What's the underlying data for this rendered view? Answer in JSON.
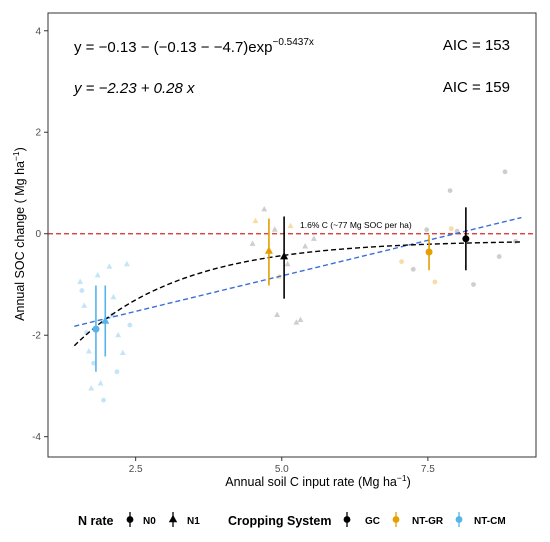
{
  "chart_data": {
    "type": "scatter",
    "xlabel": "Annual soil C input rate (Mg ha",
    "xlabel_sup": "−1",
    "xlabel_end": ")",
    "ylabel": "Annual SOC change ( Mg ha",
    "ylabel_sup": "−1",
    "ylabel_end": ")",
    "xlim": [
      1.0,
      9.35
    ],
    "ylim": [
      -4.4,
      4.35
    ],
    "x_ticks": [
      2.5,
      5.0,
      7.5
    ],
    "x_tick_labels": [
      "2.5",
      "5.0",
      "7.5"
    ],
    "y_ticks": [
      -4,
      -2,
      0,
      2,
      4
    ],
    "y_tick_labels": [
      "-4",
      "-2",
      "0",
      "2",
      "4"
    ],
    "grid": false,
    "annotations": {
      "eq1_main": "y = −0.13 − (−0.13 − −4.7)exp",
      "eq1_sup": "−0.5437x",
      "eq2": "y = −2.23 + 0.28 x",
      "aic1": "AIC = 153",
      "aic2": "AIC = 159",
      "threshold_label": "1.6% C (~77 Mg SOC per ha)"
    },
    "colors": {
      "GC": "#000000",
      "NT-GR": "#E69F00",
      "NT-CM": "#56B4E9",
      "exp_fit": "#000000",
      "linear_fit": "#3A6FD8",
      "zero_line": "#D62728",
      "raw_gray": "#BDBDBD"
    },
    "reference_line": {
      "y": 0
    },
    "exp_fit": {
      "a": -0.13,
      "b": -4.7,
      "k": 0.5437,
      "x_range": [
        1.45,
        9.1
      ]
    },
    "linear_fit": {
      "intercept": -2.23,
      "slope": 0.28,
      "x_range": [
        1.45,
        9.1
      ]
    },
    "summary_points": [
      {
        "group": "NT-CM",
        "n_rate": "N0",
        "x": 1.82,
        "y": -1.88,
        "ymin": -2.72,
        "ymax": -1.02
      },
      {
        "group": "NT-CM",
        "n_rate": "N1",
        "x": 1.98,
        "y": -1.72,
        "ymin": -2.42,
        "ymax": -1.02
      },
      {
        "group": "NT-GR",
        "n_rate": "N1",
        "x": 4.78,
        "y": -0.34,
        "ymin": -1.02,
        "ymax": 0.3
      },
      {
        "group": "GC",
        "n_rate": "N1",
        "x": 5.04,
        "y": -0.45,
        "ymin": -1.28,
        "ymax": 0.34
      },
      {
        "group": "NT-GR",
        "n_rate": "N0",
        "x": 7.52,
        "y": -0.36,
        "ymin": -0.72,
        "ymax": -0.02
      },
      {
        "group": "GC",
        "n_rate": "N0",
        "x": 8.15,
        "y": -0.1,
        "ymin": -0.72,
        "ymax": 0.52
      }
    ],
    "raw_points": [
      {
        "group": "NT-CM",
        "shape": "triangle",
        "x": 1.55,
        "y": -0.95
      },
      {
        "group": "NT-CM",
        "shape": "triangle",
        "x": 1.62,
        "y": -1.42
      },
      {
        "group": "NT-CM",
        "shape": "triangle",
        "x": 1.7,
        "y": -2.32
      },
      {
        "group": "NT-CM",
        "shape": "triangle",
        "x": 1.74,
        "y": -3.05
      },
      {
        "group": "NT-CM",
        "shape": "triangle",
        "x": 1.85,
        "y": -0.82
      },
      {
        "group": "NT-CM",
        "shape": "triangle",
        "x": 1.9,
        "y": -2.95
      },
      {
        "group": "NT-CM",
        "shape": "triangle",
        "x": 2.05,
        "y": -0.65
      },
      {
        "group": "NT-CM",
        "shape": "triangle",
        "x": 2.12,
        "y": -1.25
      },
      {
        "group": "NT-CM",
        "shape": "triangle",
        "x": 2.2,
        "y": -2.0
      },
      {
        "group": "NT-CM",
        "shape": "triangle",
        "x": 2.28,
        "y": -2.35
      },
      {
        "group": "NT-CM",
        "shape": "triangle",
        "x": 2.35,
        "y": -0.6
      },
      {
        "group": "NT-CM",
        "shape": "circle",
        "x": 1.58,
        "y": -1.12
      },
      {
        "group": "NT-CM",
        "shape": "circle",
        "x": 1.66,
        "y": -1.95
      },
      {
        "group": "NT-CM",
        "shape": "circle",
        "x": 1.78,
        "y": -2.55
      },
      {
        "group": "NT-CM",
        "shape": "circle",
        "x": 1.95,
        "y": -3.28
      },
      {
        "group": "NT-CM",
        "shape": "circle",
        "x": 2.1,
        "y": -1.6
      },
      {
        "group": "NT-CM",
        "shape": "circle",
        "x": 2.18,
        "y": -2.72
      },
      {
        "group": "NT-CM",
        "shape": "circle",
        "x": 2.4,
        "y": -1.8
      },
      {
        "group": "NT-GR",
        "shape": "triangle",
        "x": 4.55,
        "y": 0.25
      },
      {
        "group": "NT-GR",
        "shape": "triangle",
        "x": 4.95,
        "y": -0.85
      },
      {
        "group": "NT-GR",
        "shape": "triangle",
        "x": 5.15,
        "y": 0.15
      },
      {
        "group": "NT-GR",
        "shape": "circle",
        "x": 7.05,
        "y": -0.55
      },
      {
        "group": "NT-GR",
        "shape": "circle",
        "x": 7.62,
        "y": -0.95
      },
      {
        "group": "NT-GR",
        "shape": "circle",
        "x": 7.9,
        "y": 0.1
      },
      {
        "group": "GC",
        "shape": "triangle",
        "x": 4.5,
        "y": -0.2
      },
      {
        "group": "GC",
        "shape": "triangle",
        "x": 4.7,
        "y": 0.48
      },
      {
        "group": "GC",
        "shape": "triangle",
        "x": 4.88,
        "y": 0.08
      },
      {
        "group": "GC",
        "shape": "triangle",
        "x": 4.92,
        "y": -1.6
      },
      {
        "group": "GC",
        "shape": "triangle",
        "x": 5.1,
        "y": -0.6
      },
      {
        "group": "GC",
        "shape": "triangle",
        "x": 5.25,
        "y": -1.75
      },
      {
        "group": "GC",
        "shape": "triangle",
        "x": 5.32,
        "y": -1.7
      },
      {
        "group": "GC",
        "shape": "triangle",
        "x": 5.4,
        "y": -0.25
      },
      {
        "group": "GC",
        "shape": "triangle",
        "x": 5.55,
        "y": -0.1
      },
      {
        "group": "GC",
        "shape": "circle",
        "x": 7.25,
        "y": -0.7
      },
      {
        "group": "GC",
        "shape": "circle",
        "x": 7.48,
        "y": 0.08
      },
      {
        "group": "GC",
        "shape": "circle",
        "x": 7.88,
        "y": 0.85
      },
      {
        "group": "GC",
        "shape": "circle",
        "x": 8.0,
        "y": 0.05
      },
      {
        "group": "GC",
        "shape": "circle",
        "x": 8.28,
        "y": -1.0
      },
      {
        "group": "GC",
        "shape": "circle",
        "x": 8.72,
        "y": -0.45
      },
      {
        "group": "GC",
        "shape": "circle",
        "x": 8.82,
        "y": 1.22
      },
      {
        "group": "GC",
        "shape": "circle",
        "x": 9.0,
        "y": -0.15
      }
    ],
    "legend": {
      "placement": "bottom",
      "n_rate_title": "N rate",
      "n_rate_items": [
        {
          "label": "N0",
          "shape": "circle"
        },
        {
          "label": "N1",
          "shape": "triangle"
        }
      ],
      "system_title": "Cropping System",
      "system_items": [
        {
          "label": "GC",
          "color": "#000000"
        },
        {
          "label": "NT-GR",
          "color": "#E69F00"
        },
        {
          "label": "NT-CM",
          "color": "#56B4E9"
        }
      ]
    }
  }
}
